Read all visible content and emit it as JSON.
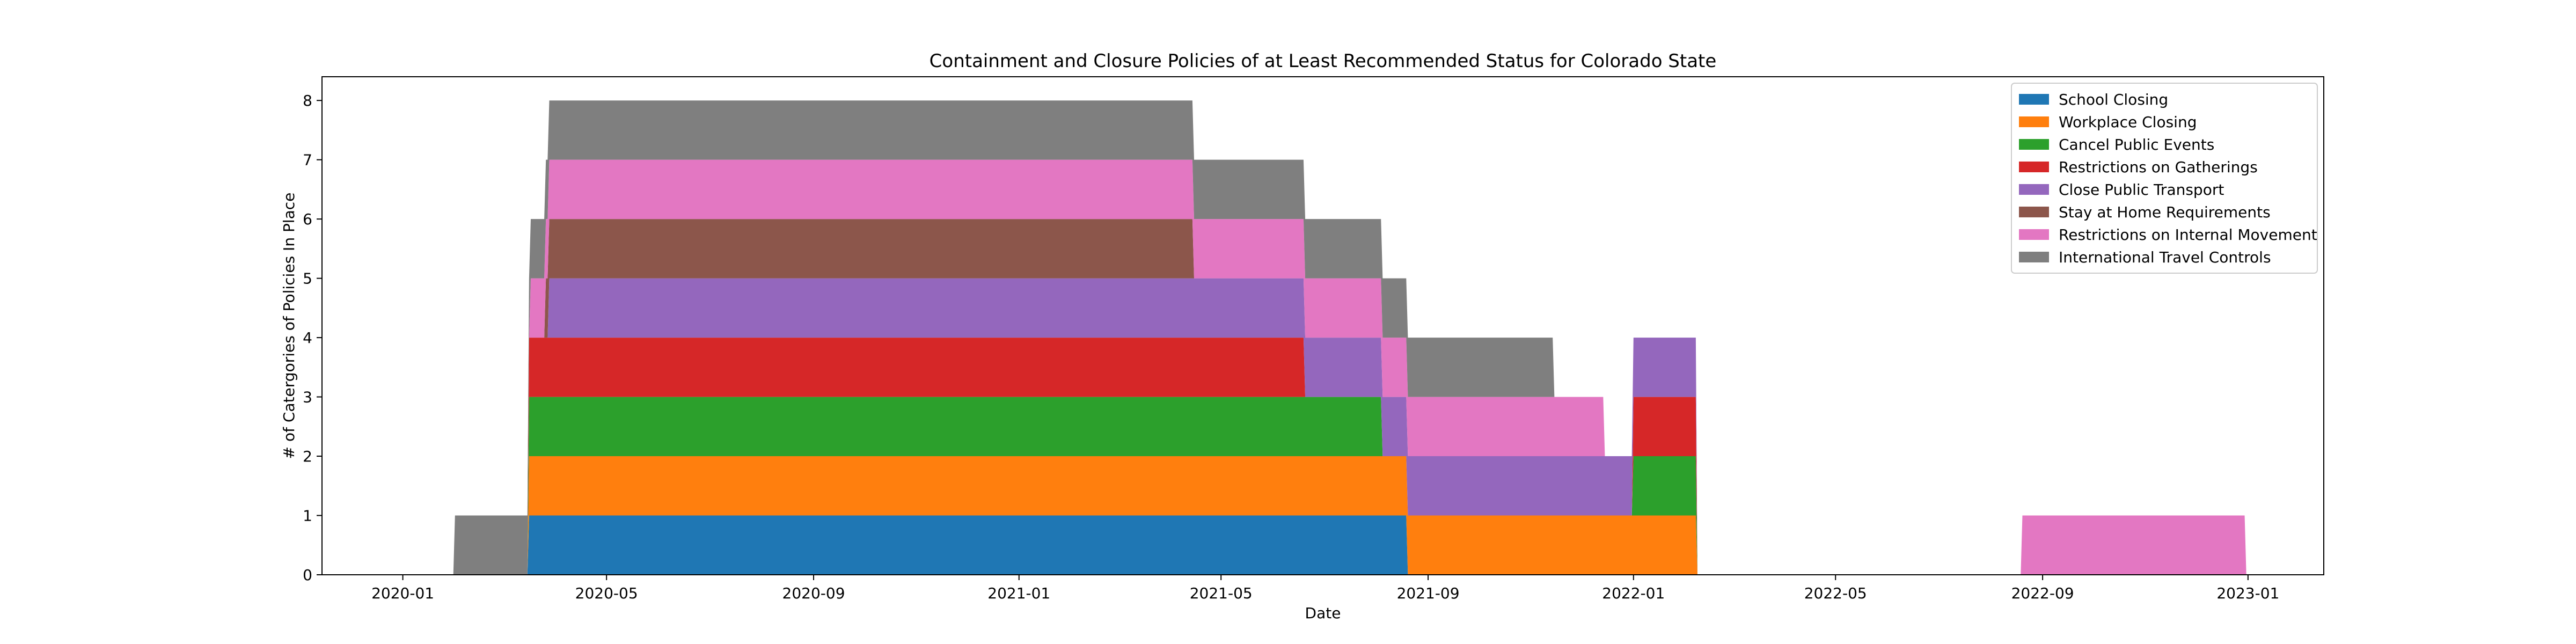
{
  "chart_data": {
    "type": "area",
    "stacked": true,
    "title": "Containment and Closure Policies of at Least Recommended Status for Colorado State",
    "xlabel": "Date",
    "ylabel": "# of Catergories of Policies In Place",
    "xlim": [
      "2019-11-14",
      "2023-02-15"
    ],
    "ylim": [
      0,
      8.4
    ],
    "x_ticks": [
      "2020-01",
      "2020-05",
      "2020-09",
      "2021-01",
      "2021-05",
      "2021-09",
      "2022-01",
      "2022-05",
      "2022-09",
      "2023-01"
    ],
    "y_ticks": [
      0,
      1,
      2,
      3,
      4,
      5,
      6,
      7,
      8
    ],
    "grid": false,
    "legend_position": "top-right",
    "series": [
      {
        "name": "School Closing",
        "color": "#1f77b4",
        "intervals": [
          [
            "2020-03-16",
            "2021-08-20"
          ]
        ]
      },
      {
        "name": "Workplace Closing",
        "color": "#ff7f0e",
        "intervals": [
          [
            "2020-03-16",
            "2022-02-08"
          ]
        ]
      },
      {
        "name": "Cancel Public Events",
        "color": "#2ca02c",
        "intervals": [
          [
            "2020-03-16",
            "2021-08-05"
          ],
          [
            "2022-01-01",
            "2022-02-08"
          ]
        ]
      },
      {
        "name": "Restrictions on Gatherings",
        "color": "#d62728",
        "intervals": [
          [
            "2020-03-16",
            "2021-06-20"
          ],
          [
            "2022-01-01",
            "2022-02-08"
          ]
        ]
      },
      {
        "name": "Close Public Transport",
        "color": "#9467bd",
        "intervals": [
          [
            "2020-03-28",
            "2021-08-20"
          ],
          [
            "2021-08-20",
            "2022-01-01"
          ],
          [
            "2022-01-01",
            "2022-02-08"
          ]
        ]
      },
      {
        "name": "Stay at Home Requirements",
        "color": "#8c564b",
        "intervals": [
          [
            "2020-03-26",
            "2021-04-15"
          ]
        ]
      },
      {
        "name": "Restrictions on Internal Movement",
        "color": "#e377c2",
        "intervals": [
          [
            "2020-03-17",
            "2021-08-20"
          ],
          [
            "2021-08-20",
            "2021-12-15"
          ],
          [
            "2022-08-20",
            "2022-12-31"
          ]
        ]
      },
      {
        "name": "International Travel Controls",
        "color": "#7f7f7f",
        "intervals": [
          [
            "2020-02-01",
            "2021-11-15"
          ]
        ]
      }
    ]
  }
}
